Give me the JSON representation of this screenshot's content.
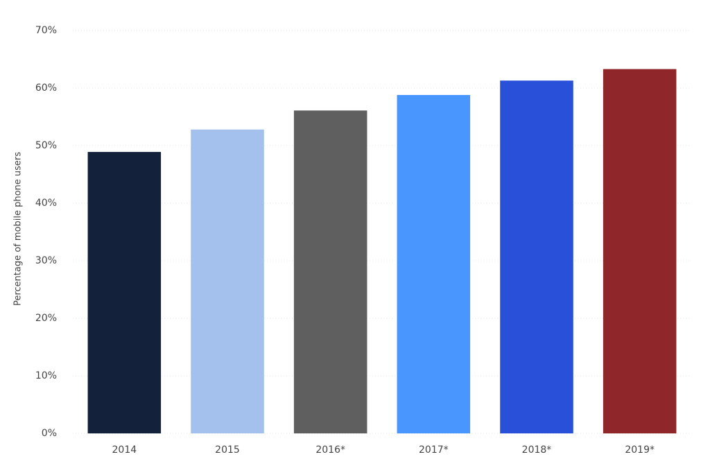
{
  "chart_data": {
    "type": "bar",
    "y_label": "Percentage of mobile phone users",
    "categories": [
      "2014",
      "2015",
      "2016*",
      "2017*",
      "2018*",
      "2019*"
    ],
    "values": [
      48.9,
      52.8,
      56.1,
      58.8,
      61.3,
      63.3
    ],
    "colors": [
      "#14213a",
      "#a3c1ec",
      "#5f5f5f",
      "#4896fe",
      "#2850d9",
      "#8f262a"
    ],
    "ylim": [
      0,
      70
    ],
    "yticks": [
      {
        "value": 0,
        "label": "0%"
      },
      {
        "value": 10,
        "label": "10%"
      },
      {
        "value": 20,
        "label": "20%"
      },
      {
        "value": 30,
        "label": "30%"
      },
      {
        "value": 40,
        "label": "40%"
      },
      {
        "value": 50,
        "label": "50%"
      },
      {
        "value": 60,
        "label": "60%"
      },
      {
        "value": 70,
        "label": "70%"
      }
    ],
    "grid": true
  }
}
